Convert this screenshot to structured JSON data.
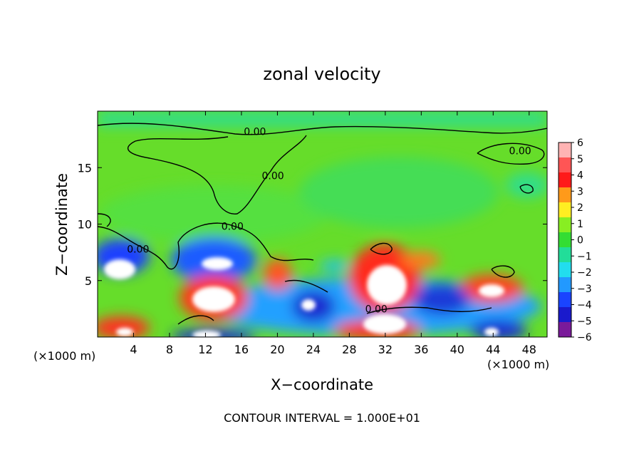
{
  "chart_data": {
    "type": "heatmap",
    "title": "zonal velocity",
    "xlabel": "X−coordinate",
    "ylabel": "Z−coordinate",
    "x_unit_left": "(×1000 m)",
    "x_unit_right": "(×1000 m)",
    "xlim": [
      0,
      50
    ],
    "ylim": [
      0,
      20
    ],
    "x_ticks": [
      4,
      8,
      12,
      16,
      20,
      24,
      28,
      32,
      36,
      40,
      44,
      48
    ],
    "y_ticks": [
      5,
      10,
      15
    ],
    "colorbar": {
      "ticks": [
        "6",
        "5",
        "4",
        "3",
        "2",
        "1",
        "0",
        "−1",
        "−2",
        "−3",
        "−4",
        "−5",
        "−6"
      ],
      "range": [
        -6,
        6
      ]
    },
    "contour_labels": [
      {
        "text": "0.00",
        "x": 17.5,
        "z": 18.2
      },
      {
        "text": "0.00",
        "x": 19.5,
        "z": 14.3
      },
      {
        "text": "0.00",
        "x": 15,
        "z": 9.8
      },
      {
        "text": "0.00",
        "x": 4.5,
        "z": 7.8
      },
      {
        "text": "0.00",
        "x": 31,
        "z": 2.5
      },
      {
        "text": "0.00",
        "x": 47,
        "z": 16.5
      }
    ],
    "footnote": "CONTOUR INTERVAL = 1.000E+01"
  }
}
